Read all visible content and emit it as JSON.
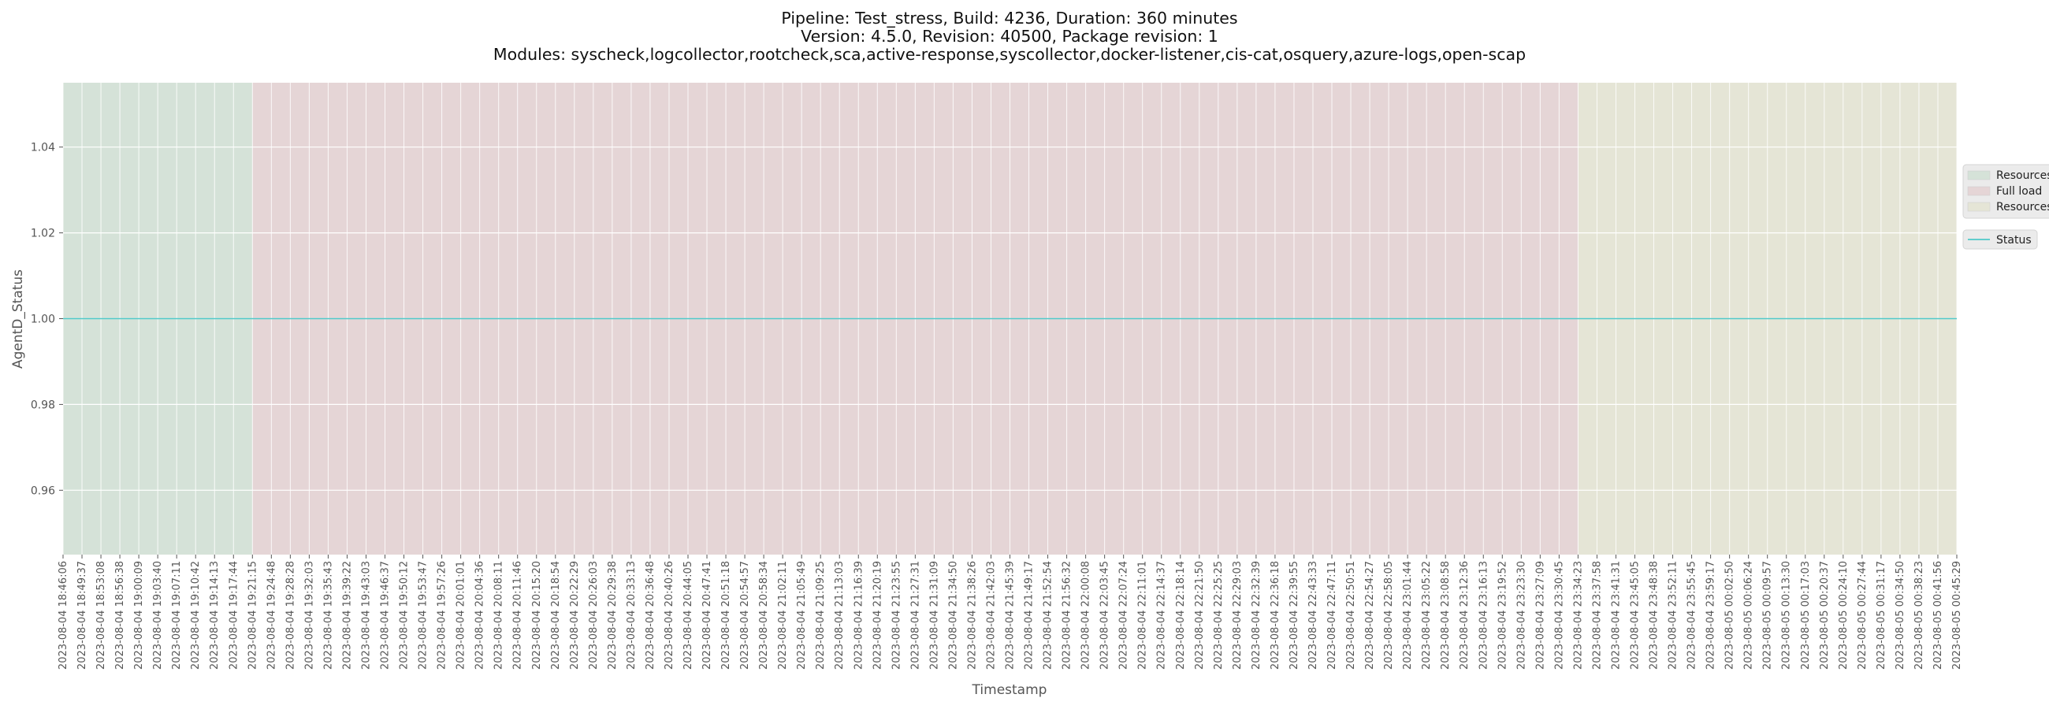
{
  "chart_data": {
    "type": "line",
    "title_lines": [
      "Pipeline: Test_stress, Build: 4236, Duration: 360 minutes",
      "Version: 4.5.0, Revision: 40500, Package revision: 1",
      "Modules: syscheck,logcollector,rootcheck,sca,active-response,syscollector,docker-listener,cis-cat,osquery,azure-logs,open-scap"
    ],
    "xlabel": "Timestamp",
    "ylabel": "AgentD_Status",
    "ylim": [
      0.945,
      1.055
    ],
    "yticks": [
      0.96,
      0.98,
      1.0,
      1.02,
      1.04
    ],
    "ytick_labels": [
      "0.96",
      "0.98",
      "1.00",
      "1.02",
      "1.04"
    ],
    "grid": true,
    "x": [
      "2023-08-04 18:46:06",
      "2023-08-04 18:49:37",
      "2023-08-04 18:53:08",
      "2023-08-04 18:56:38",
      "2023-08-04 19:00:09",
      "2023-08-04 19:03:40",
      "2023-08-04 19:07:11",
      "2023-08-04 19:10:42",
      "2023-08-04 19:14:13",
      "2023-08-04 19:17:44",
      "2023-08-04 19:21:15",
      "2023-08-04 19:24:48",
      "2023-08-04 19:28:28",
      "2023-08-04 19:32:03",
      "2023-08-04 19:35:43",
      "2023-08-04 19:39:22",
      "2023-08-04 19:43:03",
      "2023-08-04 19:46:37",
      "2023-08-04 19:50:12",
      "2023-08-04 19:53:47",
      "2023-08-04 19:57:26",
      "2023-08-04 20:01:01",
      "2023-08-04 20:04:36",
      "2023-08-04 20:08:11",
      "2023-08-04 20:11:46",
      "2023-08-04 20:15:20",
      "2023-08-04 20:18:54",
      "2023-08-04 20:22:29",
      "2023-08-04 20:26:03",
      "2023-08-04 20:29:38",
      "2023-08-04 20:33:13",
      "2023-08-04 20:36:48",
      "2023-08-04 20:40:26",
      "2023-08-04 20:44:05",
      "2023-08-04 20:47:41",
      "2023-08-04 20:51:18",
      "2023-08-04 20:54:57",
      "2023-08-04 20:58:34",
      "2023-08-04 21:02:11",
      "2023-08-04 21:05:49",
      "2023-08-04 21:09:25",
      "2023-08-04 21:13:03",
      "2023-08-04 21:16:39",
      "2023-08-04 21:20:19",
      "2023-08-04 21:23:55",
      "2023-08-04 21:27:31",
      "2023-08-04 21:31:09",
      "2023-08-04 21:34:50",
      "2023-08-04 21:38:26",
      "2023-08-04 21:42:03",
      "2023-08-04 21:45:39",
      "2023-08-04 21:49:17",
      "2023-08-04 21:52:54",
      "2023-08-04 21:56:32",
      "2023-08-04 22:00:08",
      "2023-08-04 22:03:45",
      "2023-08-04 22:07:24",
      "2023-08-04 22:11:01",
      "2023-08-04 22:14:37",
      "2023-08-04 22:18:14",
      "2023-08-04 22:21:50",
      "2023-08-04 22:25:25",
      "2023-08-04 22:29:03",
      "2023-08-04 22:32:39",
      "2023-08-04 22:36:18",
      "2023-08-04 22:39:55",
      "2023-08-04 22:43:33",
      "2023-08-04 22:47:11",
      "2023-08-04 22:50:51",
      "2023-08-04 22:54:27",
      "2023-08-04 22:58:05",
      "2023-08-04 23:01:44",
      "2023-08-04 23:05:22",
      "2023-08-04 23:08:58",
      "2023-08-04 23:12:36",
      "2023-08-04 23:16:13",
      "2023-08-04 23:19:52",
      "2023-08-04 23:23:30",
      "2023-08-04 23:27:09",
      "2023-08-04 23:30:45",
      "2023-08-04 23:34:23",
      "2023-08-04 23:37:58",
      "2023-08-04 23:41:31",
      "2023-08-04 23:45:05",
      "2023-08-04 23:48:38",
      "2023-08-04 23:52:11",
      "2023-08-04 23:55:45",
      "2023-08-04 23:59:17",
      "2023-08-05 00:02:50",
      "2023-08-05 00:06:24",
      "2023-08-05 00:09:57",
      "2023-08-05 00:13:30",
      "2023-08-05 00:17:03",
      "2023-08-05 00:20:37",
      "2023-08-05 00:24:10",
      "2023-08-05 00:27:44",
      "2023-08-05 00:31:17",
      "2023-08-05 00:34:50",
      "2023-08-05 00:38:23",
      "2023-08-05 00:41:56",
      "2023-08-05 00:45:29"
    ],
    "series": [
      {
        "name": "Status",
        "color": "#4fc9c9",
        "y_constant": 1.0
      }
    ],
    "regions": [
      {
        "label": "Resources",
        "start_index": 0,
        "end_index": 10,
        "color": "#d5e2d8"
      },
      {
        "label": "Full load",
        "start_index": 10,
        "end_index": 80,
        "color": "#e5d5d6"
      },
      {
        "label": "Resources",
        "start_index": 80,
        "end_index": 100,
        "color": "#e5e5d6"
      }
    ],
    "legend_position": "right"
  }
}
